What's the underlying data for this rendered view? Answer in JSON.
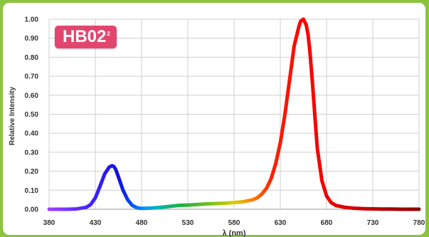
{
  "chart_data": {
    "type": "line",
    "title": "",
    "xlabel": "λ (nm)",
    "ylabel": "Relative Intensity",
    "xlim": [
      380,
      780
    ],
    "ylim": [
      0,
      1.0
    ],
    "x_ticks": [
      "380",
      "430",
      "480",
      "530",
      "580",
      "630",
      "680",
      "730",
      "780"
    ],
    "y_ticks": [
      "0.00",
      "0.10",
      "0.20",
      "0.30",
      "0.40",
      "0.50",
      "0.60",
      "0.70",
      "0.80",
      "0.90",
      "1.00"
    ],
    "grid": true,
    "badge": {
      "text": "HB02",
      "superscript": "2"
    },
    "series": [
      {
        "x": [
          380,
          390,
          400,
          410,
          420,
          425,
          430,
          435,
          440,
          445,
          448,
          450,
          452,
          455,
          460,
          465,
          470,
          475,
          480,
          490,
          500,
          510,
          520,
          530,
          540,
          550,
          560,
          570,
          580,
          590,
          600,
          605,
          610,
          615,
          620,
          625,
          630,
          635,
          640,
          645,
          650,
          652,
          655,
          658,
          660,
          662,
          665,
          668,
          670,
          675,
          680,
          685,
          690,
          700,
          710,
          720,
          730,
          740,
          750,
          760,
          770,
          780
        ],
        "y": [
          0.0,
          0.0,
          0.0,
          0.002,
          0.01,
          0.025,
          0.06,
          0.12,
          0.185,
          0.222,
          0.229,
          0.225,
          0.21,
          0.17,
          0.1,
          0.05,
          0.02,
          0.008,
          0.004,
          0.006,
          0.01,
          0.015,
          0.02,
          0.022,
          0.025,
          0.028,
          0.03,
          0.032,
          0.035,
          0.04,
          0.05,
          0.06,
          0.08,
          0.11,
          0.16,
          0.24,
          0.35,
          0.5,
          0.68,
          0.86,
          0.96,
          0.99,
          1.0,
          0.97,
          0.92,
          0.83,
          0.65,
          0.45,
          0.32,
          0.15,
          0.07,
          0.035,
          0.02,
          0.01,
          0.005,
          0.003,
          0.002,
          0.001,
          0.001,
          0.0,
          0.0,
          0.0
        ]
      }
    ]
  }
}
